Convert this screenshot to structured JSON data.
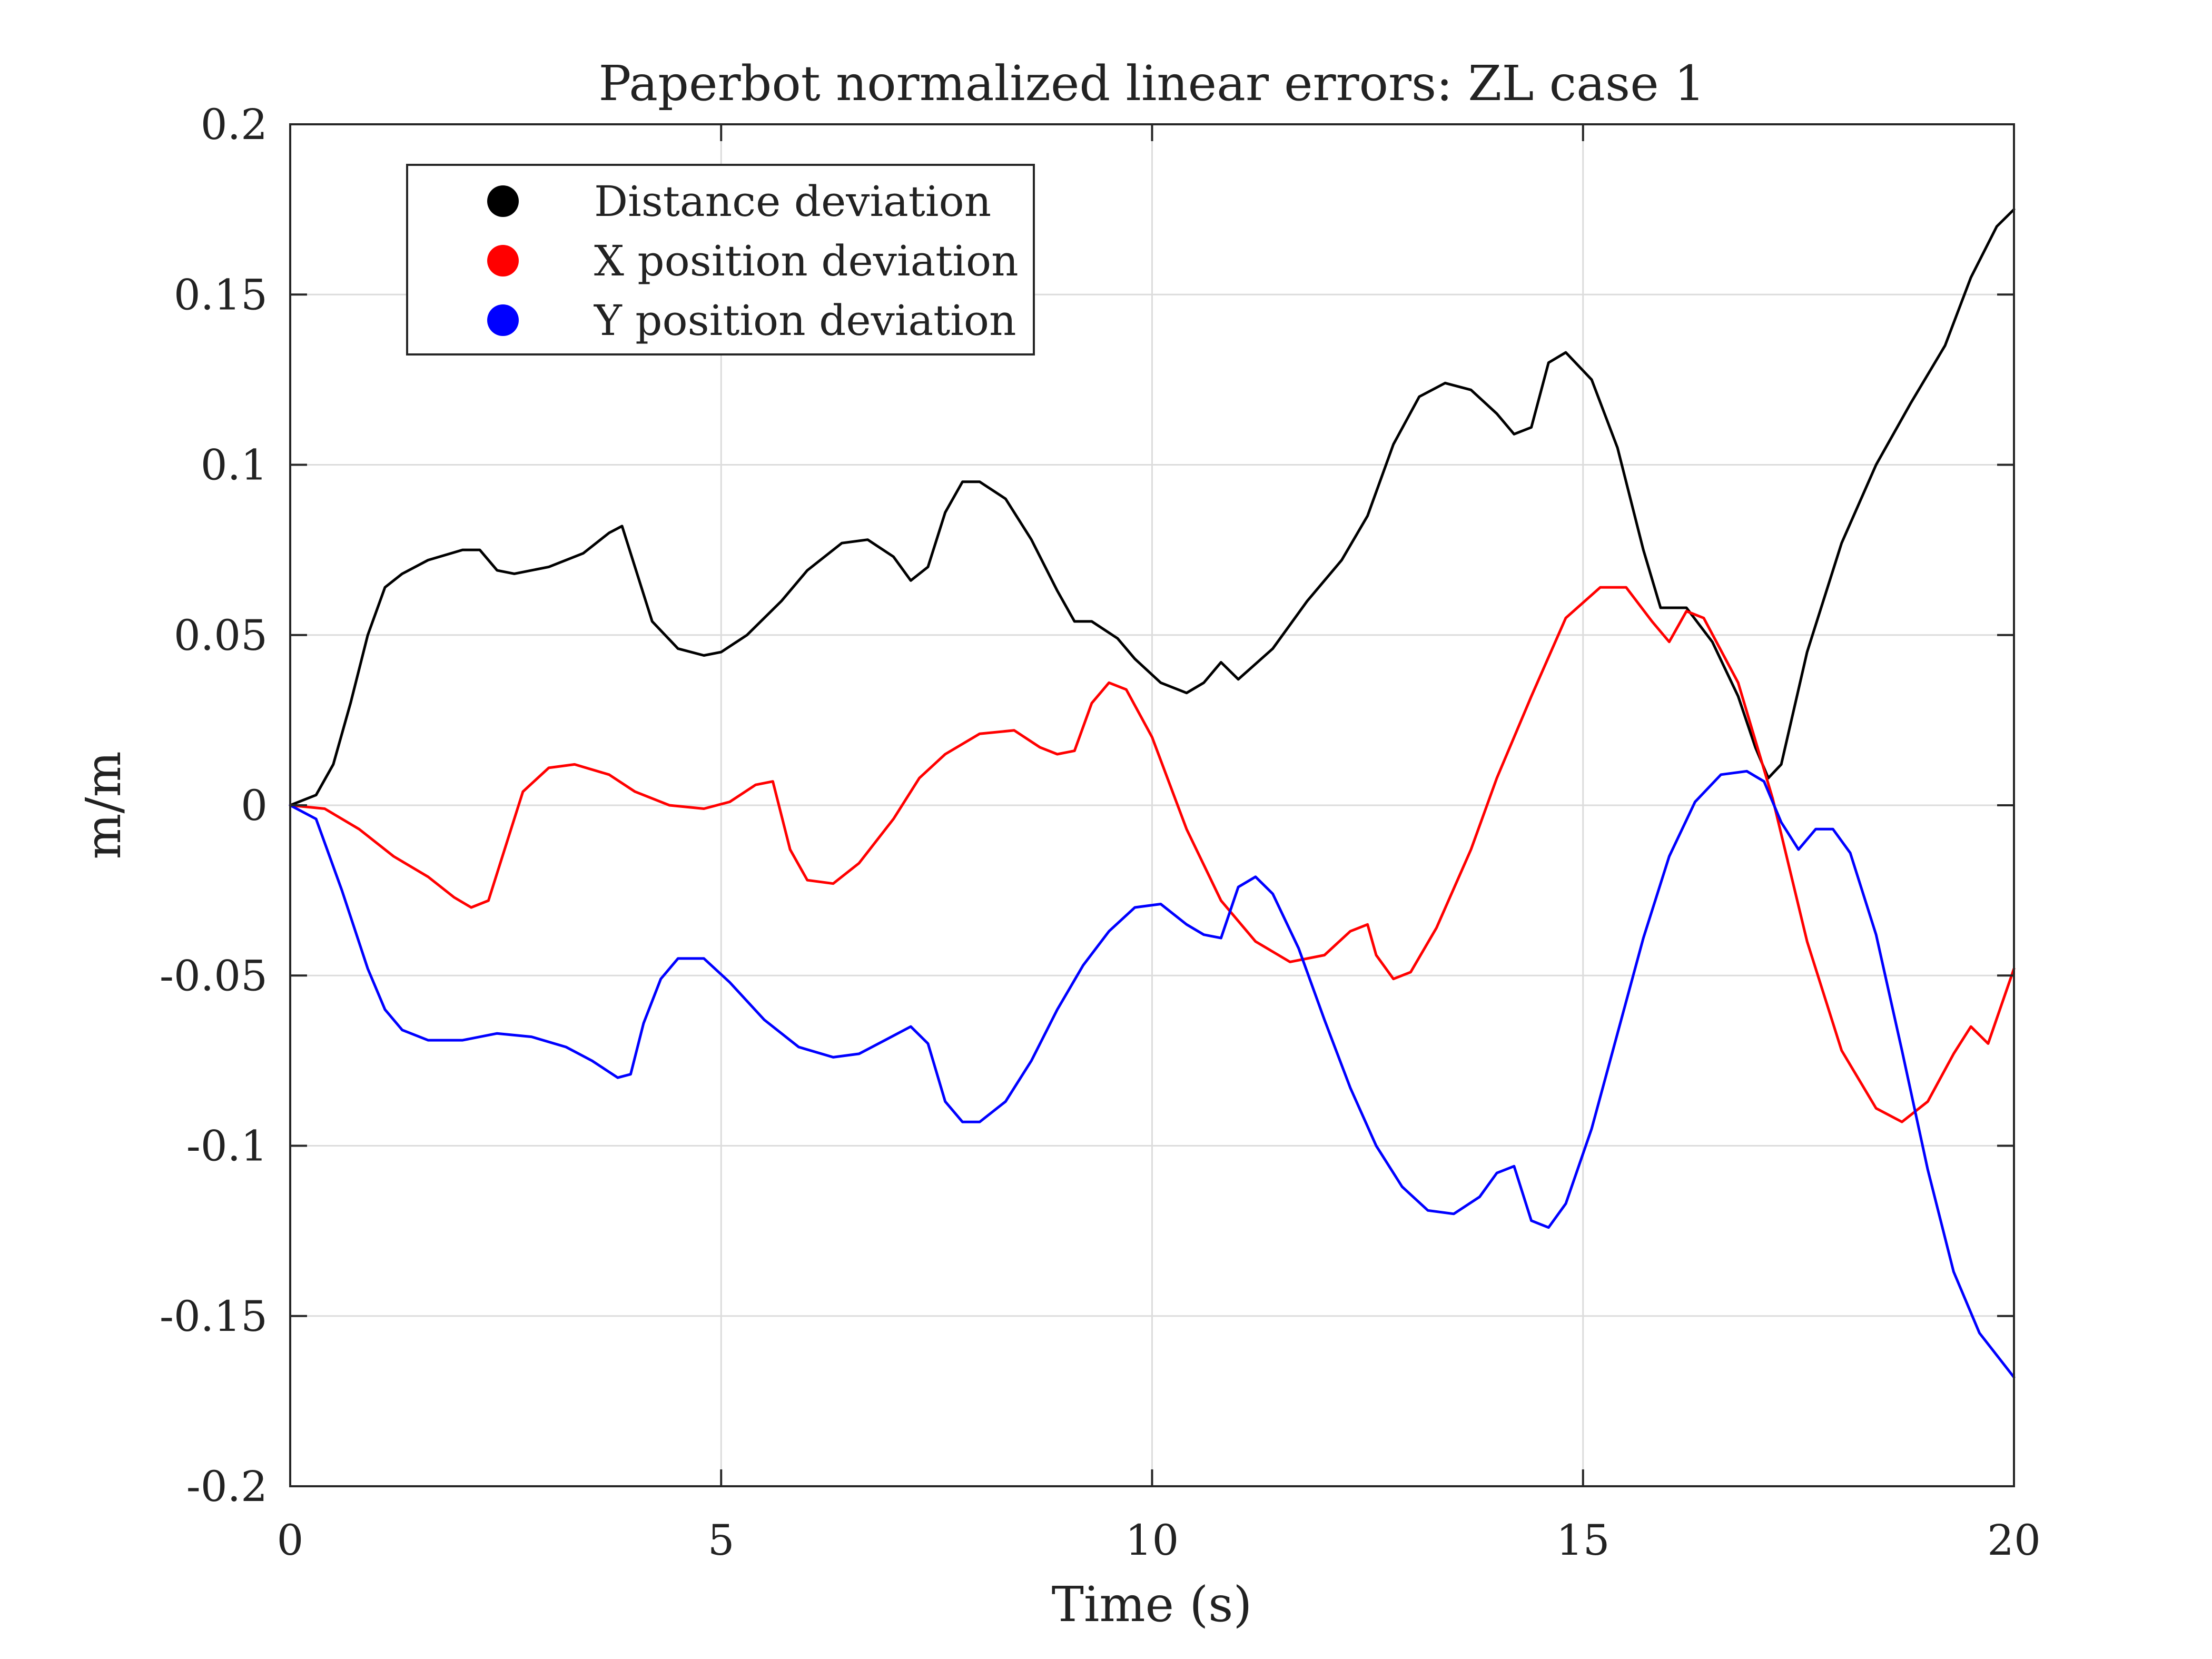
{
  "chart_data": {
    "type": "line",
    "title": "Paperbot normalized linear errors: ZL case 1",
    "xlabel": "Time (s)",
    "ylabel": "m/m",
    "xlim": [
      0,
      20
    ],
    "ylim": [
      -0.2,
      0.2
    ],
    "xticks": [
      0,
      5,
      10,
      15,
      20
    ],
    "xtick_labels": [
      "0",
      "5",
      "10",
      "15",
      "20"
    ],
    "yticks": [
      -0.2,
      -0.15,
      -0.1,
      -0.05,
      0,
      0.05,
      0.1,
      0.15,
      0.2
    ],
    "ytick_labels": [
      "-0.2",
      "-0.15",
      "-0.1",
      "-0.05",
      "0",
      "0.05",
      "0.1",
      "0.15",
      "0.2"
    ],
    "grid": true,
    "legend_position": "top-left",
    "series": [
      {
        "name": "Distance deviation",
        "color": "#000000",
        "x": [
          0,
          0.3,
          0.5,
          0.7,
          0.9,
          1.1,
          1.3,
          1.6,
          2.0,
          2.2,
          2.4,
          2.6,
          3.0,
          3.4,
          3.7,
          3.85,
          4.0,
          4.2,
          4.5,
          4.8,
          5.0,
          5.3,
          5.7,
          6.0,
          6.4,
          6.7,
          7.0,
          7.2,
          7.4,
          7.6,
          7.8,
          8.0,
          8.3,
          8.6,
          8.9,
          9.1,
          9.3,
          9.6,
          9.8,
          10.1,
          10.4,
          10.6,
          10.8,
          11.0,
          11.4,
          11.8,
          12.2,
          12.5,
          12.8,
          13.1,
          13.4,
          13.7,
          14.0,
          14.2,
          14.4,
          14.6,
          14.8,
          15.1,
          15.4,
          15.7,
          15.9,
          16.2,
          16.5,
          16.8,
          17.0,
          17.15,
          17.3,
          17.6,
          18.0,
          18.4,
          18.8,
          19.2,
          19.5,
          19.8,
          20.0
        ],
        "y": [
          0,
          0.003,
          0.012,
          0.03,
          0.05,
          0.064,
          0.068,
          0.072,
          0.075,
          0.075,
          0.069,
          0.068,
          0.07,
          0.074,
          0.08,
          0.082,
          0.07,
          0.054,
          0.046,
          0.044,
          0.045,
          0.05,
          0.06,
          0.069,
          0.077,
          0.078,
          0.073,
          0.066,
          0.07,
          0.086,
          0.095,
          0.095,
          0.09,
          0.078,
          0.063,
          0.054,
          0.054,
          0.049,
          0.043,
          0.036,
          0.033,
          0.036,
          0.042,
          0.037,
          0.046,
          0.06,
          0.072,
          0.085,
          0.106,
          0.12,
          0.124,
          0.122,
          0.115,
          0.109,
          0.111,
          0.13,
          0.133,
          0.125,
          0.105,
          0.075,
          0.058,
          0.058,
          0.048,
          0.032,
          0.017,
          0.008,
          0.012,
          0.045,
          0.077,
          0.1,
          0.118,
          0.135,
          0.155,
          0.17,
          0.175
        ]
      },
      {
        "name": "X position deviation",
        "color": "#ff0000",
        "x": [
          0,
          0.4,
          0.8,
          1.2,
          1.6,
          1.9,
          2.1,
          2.3,
          2.5,
          2.7,
          3.0,
          3.3,
          3.7,
          4.0,
          4.4,
          4.8,
          5.1,
          5.4,
          5.6,
          5.8,
          6.0,
          6.3,
          6.6,
          7.0,
          7.3,
          7.6,
          8.0,
          8.4,
          8.7,
          8.9,
          9.1,
          9.3,
          9.5,
          9.7,
          10.0,
          10.4,
          10.8,
          11.2,
          11.6,
          12.0,
          12.3,
          12.5,
          12.6,
          12.8,
          13.0,
          13.3,
          13.7,
          14.0,
          14.4,
          14.8,
          15.2,
          15.5,
          15.8,
          16.0,
          16.2,
          16.4,
          16.8,
          17.2,
          17.6,
          18.0,
          18.4,
          18.7,
          19.0,
          19.3,
          19.5,
          19.7,
          20.0
        ],
        "y": [
          0,
          -0.001,
          -0.007,
          -0.015,
          -0.021,
          -0.027,
          -0.03,
          -0.028,
          -0.012,
          0.004,
          0.011,
          0.012,
          0.009,
          0.004,
          0.0,
          -0.001,
          0.001,
          0.006,
          0.007,
          -0.013,
          -0.022,
          -0.023,
          -0.017,
          -0.004,
          0.008,
          0.015,
          0.021,
          0.022,
          0.017,
          0.015,
          0.016,
          0.03,
          0.036,
          0.034,
          0.02,
          -0.007,
          -0.028,
          -0.04,
          -0.046,
          -0.044,
          -0.037,
          -0.035,
          -0.044,
          -0.051,
          -0.049,
          -0.036,
          -0.013,
          0.008,
          0.032,
          0.055,
          0.064,
          0.064,
          0.054,
          0.048,
          0.057,
          0.055,
          0.036,
          0.002,
          -0.04,
          -0.072,
          -0.089,
          -0.093,
          -0.087,
          -0.073,
          -0.065,
          -0.07,
          -0.048
        ]
      },
      {
        "name": "Y position deviation",
        "color": "#0000ff",
        "x": [
          0,
          0.3,
          0.6,
          0.9,
          1.1,
          1.3,
          1.6,
          2.0,
          2.4,
          2.8,
          3.2,
          3.5,
          3.8,
          3.95,
          4.1,
          4.3,
          4.5,
          4.8,
          5.1,
          5.5,
          5.9,
          6.3,
          6.6,
          6.9,
          7.2,
          7.4,
          7.6,
          7.8,
          8.0,
          8.3,
          8.6,
          8.9,
          9.2,
          9.5,
          9.8,
          10.1,
          10.4,
          10.6,
          10.8,
          11.0,
          11.2,
          11.4,
          11.7,
          12.0,
          12.3,
          12.6,
          12.9,
          13.2,
          13.5,
          13.8,
          14.0,
          14.2,
          14.4,
          14.6,
          14.8,
          15.1,
          15.4,
          15.7,
          16.0,
          16.3,
          16.6,
          16.9,
          17.1,
          17.3,
          17.5,
          17.7,
          17.9,
          18.1,
          18.4,
          18.7,
          19.0,
          19.3,
          19.6,
          20.0
        ],
        "y": [
          0,
          -0.004,
          -0.025,
          -0.048,
          -0.06,
          -0.066,
          -0.069,
          -0.069,
          -0.067,
          -0.068,
          -0.071,
          -0.075,
          -0.08,
          -0.079,
          -0.064,
          -0.051,
          -0.045,
          -0.045,
          -0.052,
          -0.063,
          -0.071,
          -0.074,
          -0.073,
          -0.069,
          -0.065,
          -0.07,
          -0.087,
          -0.093,
          -0.093,
          -0.087,
          -0.075,
          -0.06,
          -0.047,
          -0.037,
          -0.03,
          -0.029,
          -0.035,
          -0.038,
          -0.039,
          -0.024,
          -0.021,
          -0.026,
          -0.042,
          -0.063,
          -0.083,
          -0.1,
          -0.112,
          -0.119,
          -0.12,
          -0.115,
          -0.108,
          -0.106,
          -0.122,
          -0.124,
          -0.117,
          -0.095,
          -0.067,
          -0.039,
          -0.015,
          0.001,
          0.009,
          0.01,
          0.007,
          -0.005,
          -0.013,
          -0.007,
          -0.007,
          -0.014,
          -0.038,
          -0.072,
          -0.107,
          -0.137,
          -0.155,
          -0.168
        ]
      }
    ]
  }
}
